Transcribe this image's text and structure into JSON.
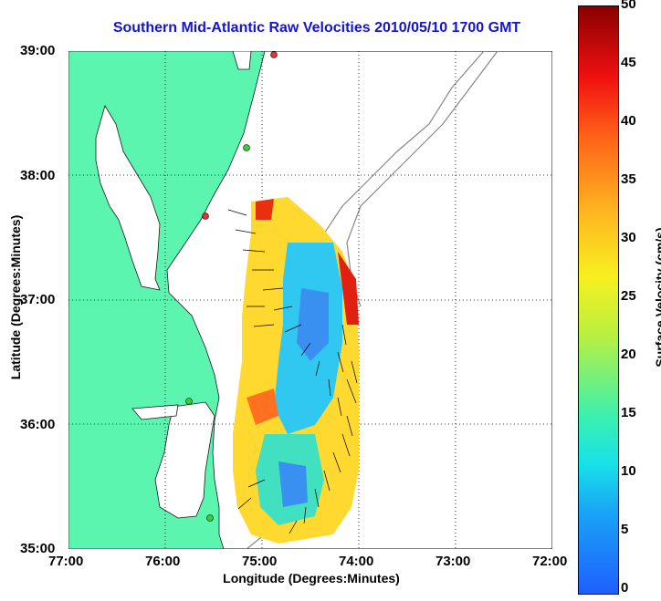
{
  "title": "Southern Mid-Atlantic Raw Velocities 2010/05/10 1700 GMT",
  "xaxis": {
    "label": "Longitude (Degrees:Minutes)",
    "ticks": [
      "77:00",
      "76:00",
      "75:00",
      "74:00",
      "73:00",
      "72:00"
    ]
  },
  "yaxis": {
    "label": "Latitude (Degrees:Minutes)",
    "ticks": [
      "39:00",
      "38:00",
      "37:00",
      "36:00",
      "35:00"
    ]
  },
  "colorbar": {
    "label": "Surface Velocity (cm/s)",
    "ticks": [
      "50",
      "45",
      "40",
      "35",
      "30",
      "25",
      "20",
      "15",
      "10",
      "5",
      "0"
    ],
    "range": [
      0,
      50
    ]
  },
  "colors": {
    "land": "#5cf5b0",
    "title": "#1414d8",
    "station": "#32d232",
    "station_alt": "#e63232"
  }
}
